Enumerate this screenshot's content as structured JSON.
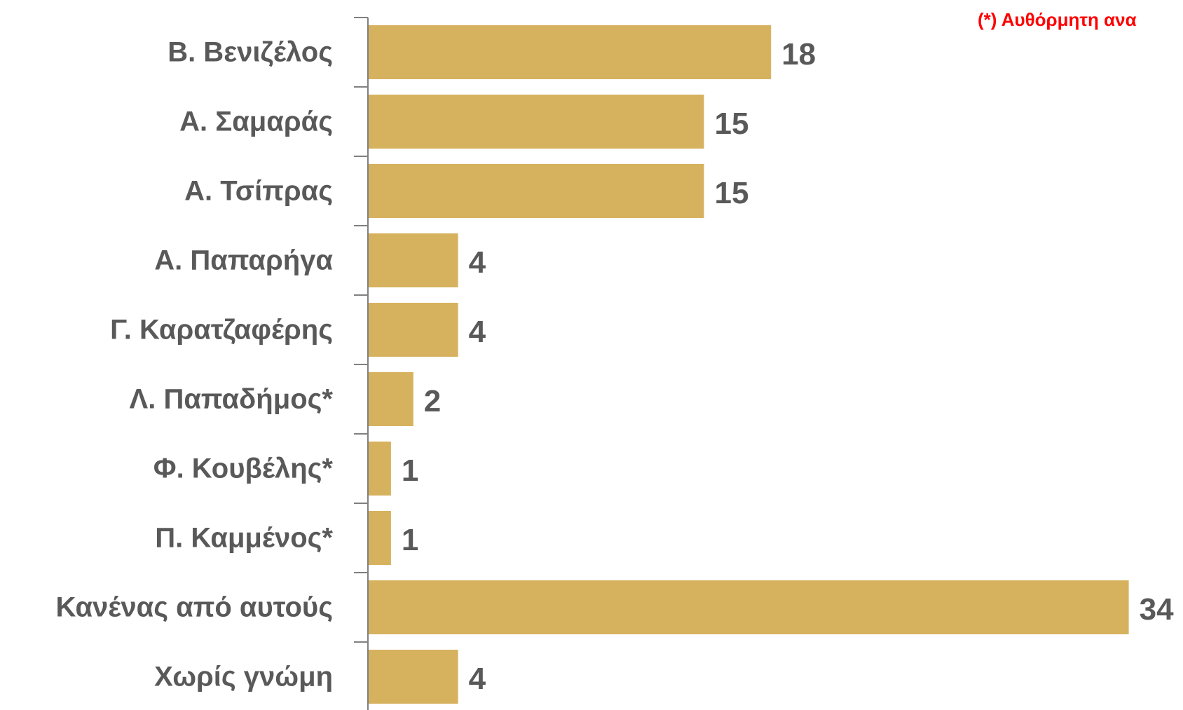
{
  "note": {
    "text": "(*) Αυθόρμητη ανα",
    "color": "#ff0000"
  },
  "chart_data": {
    "type": "bar",
    "orientation": "horizontal",
    "categories": [
      "Β. Βενιζέλος",
      "Α. Σαμαράς",
      "Α. Τσίπρας",
      "Α. Παπαρήγα",
      "Γ. Καρατζαφέρης",
      "Λ. Παπαδήμος*",
      "Φ. Κουβέλης*",
      "Π. Καμμένος*",
      "Κανένας από αυτούς",
      "Χωρίς γνώμη"
    ],
    "values": [
      18,
      15,
      15,
      4,
      4,
      2,
      1,
      1,
      34,
      4
    ],
    "value_labels": [
      "18",
      "15",
      "15",
      "4",
      "4",
      "2",
      "1",
      "1",
      "34",
      "4"
    ],
    "bar_color": "#d6b25e",
    "axis_color": "#808080",
    "label_color": "#595959",
    "xlim": [
      0,
      34
    ],
    "grid": false,
    "legend": "none"
  }
}
